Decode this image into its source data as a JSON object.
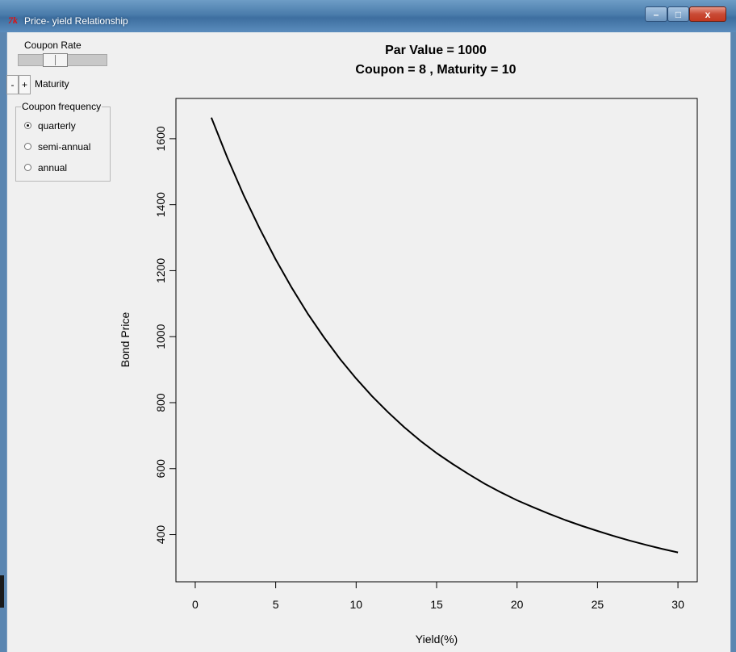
{
  "window": {
    "title": "Price- yield Relationship",
    "icon": "tk-feather-icon",
    "icon_text": "7k",
    "buttons": {
      "minimize": "–",
      "maximize": "□",
      "close": "x"
    }
  },
  "controls": {
    "coupon_rate_label": "Coupon Rate",
    "coupon_rate_slider_fraction": 0.35,
    "maturity_minus": "-",
    "maturity_plus": "+",
    "maturity_label": "Maturity",
    "frequency": {
      "label": "Coupon frequency",
      "options": [
        "quarterly",
        "semi-annual",
        "annual"
      ],
      "selected": "quarterly"
    }
  },
  "chart_data": {
    "type": "line",
    "title": "Par Value = 1000",
    "subtitle": "Coupon =  8 , Maturity =  10",
    "xlabel": "Yield(%)",
    "ylabel": "Bond Price",
    "xlim": [
      -1.2,
      31.2
    ],
    "ylim": [
      257,
      1722
    ],
    "xticks": [
      0,
      5,
      10,
      15,
      20,
      25,
      30
    ],
    "yticks": [
      400,
      600,
      800,
      1000,
      1200,
      1400,
      1600
    ],
    "grid": false,
    "line_color": "#000000",
    "series": [
      {
        "x": [
          1,
          2,
          3,
          4,
          5,
          6,
          7,
          8,
          9,
          10,
          11,
          12,
          13,
          14,
          15,
          16,
          17,
          18,
          19,
          20,
          21,
          22,
          23,
          24,
          25,
          26,
          27,
          28,
          29,
          30
        ],
        "values": [
          1664,
          1542,
          1430,
          1328,
          1234,
          1148,
          1069,
          998,
          932,
          873,
          819,
          770,
          725,
          684,
          647,
          614,
          583,
          554,
          528,
          504,
          483,
          463,
          444,
          427,
          411,
          396,
          382,
          369,
          357,
          346
        ]
      }
    ]
  }
}
